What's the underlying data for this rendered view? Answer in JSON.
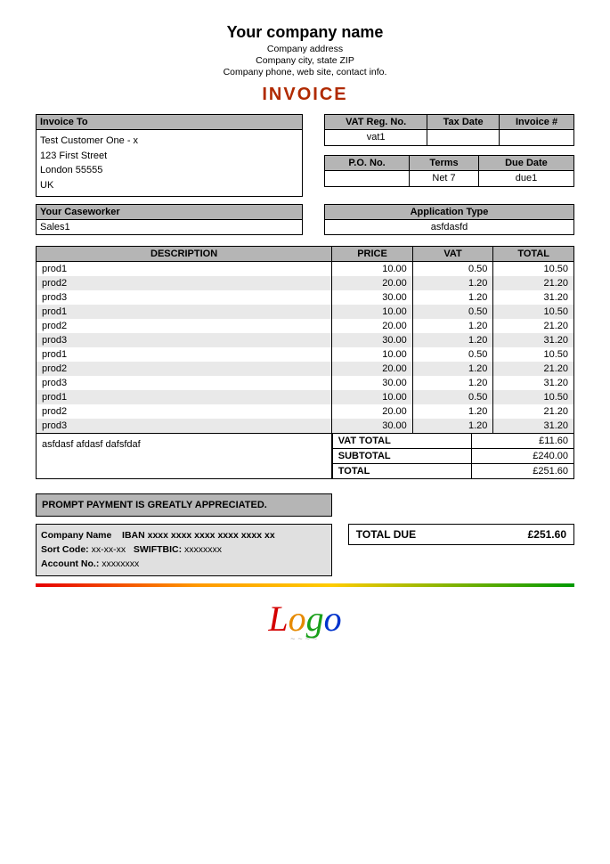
{
  "colors": {
    "header_gray": "#b5b5b5",
    "stripe_gray": "#e9e9e9",
    "bank_gray": "#e0e0e0",
    "invoice_heading": "#b02a00",
    "border": "#000000",
    "gradient": [
      "#e60000",
      "#ff9900",
      "#ffcc00",
      "#009900"
    ]
  },
  "header": {
    "company_name": "Your company name",
    "addr1": "Company address",
    "addr2": "Company city, state ZIP",
    "addr3": "Company phone, web site, contact info.",
    "title": "INVOICE"
  },
  "invoice_to": {
    "label": "Invoice To",
    "name": "Test Customer One - x",
    "street": "123 First Street",
    "city": "London 55555",
    "country": "UK"
  },
  "meta1": {
    "vat_reg_label": "VAT Reg. No.",
    "tax_date_label": "Tax Date",
    "invoice_no_label": "Invoice #",
    "vat_reg": "vat1",
    "tax_date": "",
    "invoice_no": ""
  },
  "meta2": {
    "po_label": "P.O. No.",
    "terms_label": "Terms",
    "due_label": "Due Date",
    "po": "",
    "terms": "Net 7",
    "due": "due1"
  },
  "caseworker": {
    "label": "Your Caseworker",
    "value": "Sales1"
  },
  "apptype": {
    "label": "Application Type",
    "value": "asfdasfd"
  },
  "items": {
    "columns": {
      "desc": "DESCRIPTION",
      "price": "PRICE",
      "vat": "VAT",
      "total": "TOTAL"
    },
    "rows": [
      {
        "desc": "prod1",
        "price": "10.00",
        "vat": "0.50",
        "total": "10.50"
      },
      {
        "desc": "prod2",
        "price": "20.00",
        "vat": "1.20",
        "total": "21.20"
      },
      {
        "desc": "prod3",
        "price": "30.00",
        "vat": "1.20",
        "total": "31.20"
      },
      {
        "desc": "prod1",
        "price": "10.00",
        "vat": "0.50",
        "total": "10.50"
      },
      {
        "desc": "prod2",
        "price": "20.00",
        "vat": "1.20",
        "total": "21.20"
      },
      {
        "desc": "prod3",
        "price": "30.00",
        "vat": "1.20",
        "total": "31.20"
      },
      {
        "desc": "prod1",
        "price": "10.00",
        "vat": "0.50",
        "total": "10.50"
      },
      {
        "desc": "prod2",
        "price": "20.00",
        "vat": "1.20",
        "total": "21.20"
      },
      {
        "desc": "prod3",
        "price": "30.00",
        "vat": "1.20",
        "total": "31.20"
      },
      {
        "desc": "prod1",
        "price": "10.00",
        "vat": "0.50",
        "total": "10.50"
      },
      {
        "desc": "prod2",
        "price": "20.00",
        "vat": "1.20",
        "total": "21.20"
      },
      {
        "desc": "prod3",
        "price": "30.00",
        "vat": "1.20",
        "total": "31.20"
      }
    ]
  },
  "notes": "asfdasf afdasf dafsfdaf",
  "totals": {
    "vat_label": "VAT TOTAL",
    "vat": "£11.60",
    "sub_label": "SUBTOTAL",
    "sub": "£240.00",
    "tot_label": "TOTAL",
    "tot": "£251.60"
  },
  "prompt": "PROMPT PAYMENT IS GREATLY APPRECIATED.",
  "bank": {
    "line1a": "Company Name",
    "line1b": "IBAN xxxx xxxx xxxx xxxx xxxx xx",
    "line2a": "Sort Code:",
    "line2b": "xx-xx-xx",
    "line2c": "SWIFTBIC:",
    "line2d": "xxxxxxxx",
    "line3a": "Account No.:",
    "line3b": "xxxxxxxx"
  },
  "total_due": {
    "label": "TOTAL DUE",
    "value": "£251.60"
  },
  "logo": {
    "l1": "L",
    "l2": "o",
    "l3": "g",
    "l4": "o"
  }
}
